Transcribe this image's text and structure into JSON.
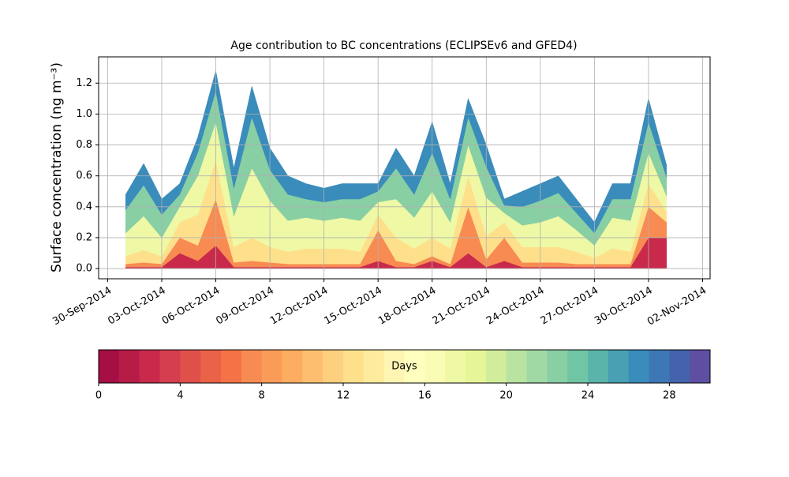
{
  "chart_data": {
    "type": "stacked_area",
    "title": "Age contribution to BC concentrations (ECLIPSEv6 and GFED4)",
    "y_label": "Surface concentration (ng m⁻³)",
    "x": [
      "2014-10-01",
      "2014-10-02",
      "2014-10-03",
      "2014-10-04",
      "2014-10-05",
      "2014-10-06",
      "2014-10-07",
      "2014-10-08",
      "2014-10-09",
      "2014-10-10",
      "2014-10-11",
      "2014-10-12",
      "2014-10-13",
      "2014-10-14",
      "2014-10-15",
      "2014-10-16",
      "2014-10-17",
      "2014-10-18",
      "2014-10-19",
      "2014-10-20",
      "2014-10-21",
      "2014-10-22",
      "2014-10-23",
      "2014-10-24",
      "2014-10-25",
      "2014-10-26",
      "2014-10-27",
      "2014-10-28",
      "2014-10-29",
      "2014-10-30",
      "2014-10-31"
    ],
    "series": [
      {
        "color": "#c9294a",
        "values": [
          0.01,
          0.01,
          0.01,
          0.1,
          0.05,
          0.15,
          0.01,
          0.01,
          0.01,
          0.01,
          0.01,
          0.01,
          0.01,
          0.01,
          0.05,
          0.01,
          0.01,
          0.05,
          0.01,
          0.1,
          0.01,
          0.05,
          0.01,
          0.01,
          0.01,
          0.01,
          0.01,
          0.01,
          0.01,
          0.2,
          0.2
        ]
      },
      {
        "color": "#f88b52",
        "values": [
          0.02,
          0.03,
          0.02,
          0.1,
          0.1,
          0.3,
          0.03,
          0.04,
          0.03,
          0.02,
          0.02,
          0.02,
          0.02,
          0.02,
          0.2,
          0.04,
          0.02,
          0.03,
          0.02,
          0.3,
          0.05,
          0.15,
          0.03,
          0.03,
          0.03,
          0.02,
          0.02,
          0.02,
          0.02,
          0.2,
          0.1
        ]
      },
      {
        "color": "#fee08b",
        "values": [
          0.05,
          0.08,
          0.05,
          0.1,
          0.2,
          0.25,
          0.1,
          0.15,
          0.1,
          0.08,
          0.1,
          0.1,
          0.1,
          0.08,
          0.1,
          0.15,
          0.1,
          0.12,
          0.1,
          0.2,
          0.15,
          0.1,
          0.1,
          0.1,
          0.1,
          0.08,
          0.04,
          0.1,
          0.08,
          0.15,
          0.07
        ]
      },
      {
        "color": "#eef8a5",
        "values": [
          0.15,
          0.22,
          0.12,
          0.1,
          0.25,
          0.25,
          0.2,
          0.45,
          0.3,
          0.2,
          0.2,
          0.18,
          0.2,
          0.2,
          0.08,
          0.25,
          0.2,
          0.3,
          0.17,
          0.2,
          0.25,
          0.06,
          0.14,
          0.16,
          0.2,
          0.14,
          0.08,
          0.2,
          0.2,
          0.2,
          0.1
        ]
      },
      {
        "color": "#88cfa4",
        "values": [
          0.15,
          0.2,
          0.15,
          0.08,
          0.15,
          0.2,
          0.18,
          0.33,
          0.2,
          0.17,
          0.12,
          0.12,
          0.12,
          0.14,
          0.07,
          0.2,
          0.15,
          0.25,
          0.15,
          0.18,
          0.2,
          0.05,
          0.12,
          0.14,
          0.15,
          0.11,
          0.08,
          0.12,
          0.14,
          0.2,
          0.12
        ]
      },
      {
        "color": "#3a8cbb",
        "values": [
          0.1,
          0.14,
          0.1,
          0.07,
          0.1,
          0.13,
          0.13,
          0.2,
          0.14,
          0.12,
          0.1,
          0.09,
          0.1,
          0.1,
          0.05,
          0.13,
          0.12,
          0.2,
          0.1,
          0.12,
          0.14,
          0.04,
          0.1,
          0.11,
          0.11,
          0.09,
          0.07,
          0.1,
          0.1,
          0.15,
          0.08
        ]
      }
    ],
    "xlim": [
      "2014-09-29T12:00Z",
      "2014-11-02T10:00Z"
    ],
    "xticks": [
      {
        "value": "2014-09-30",
        "label": "30-Sep-2014"
      },
      {
        "value": "2014-10-03",
        "label": "03-Oct-2014"
      },
      {
        "value": "2014-10-06",
        "label": "06-Oct-2014"
      },
      {
        "value": "2014-10-09",
        "label": "09-Oct-2014"
      },
      {
        "value": "2014-10-12",
        "label": "12-Oct-2014"
      },
      {
        "value": "2014-10-15",
        "label": "15-Oct-2014"
      },
      {
        "value": "2014-10-18",
        "label": "18-Oct-2014"
      },
      {
        "value": "2014-10-21",
        "label": "21-Oct-2014"
      },
      {
        "value": "2014-10-24",
        "label": "24-Oct-2014"
      },
      {
        "value": "2014-10-27",
        "label": "27-Oct-2014"
      },
      {
        "value": "2014-10-30",
        "label": "30-Oct-2014"
      },
      {
        "value": "2014-11-02",
        "label": "02-Nov-2014"
      }
    ],
    "ylim": [
      -0.066,
      1.37
    ],
    "yticks": [
      {
        "value": 0,
        "label": "0.0"
      },
      {
        "value": 0.2,
        "label": "0.2"
      },
      {
        "value": 0.4,
        "label": "0.4"
      },
      {
        "value": 0.6,
        "label": "0.6"
      },
      {
        "value": 0.8,
        "label": "0.8"
      },
      {
        "value": 1,
        "label": "1.0"
      },
      {
        "value": 1.2,
        "label": "1.2"
      }
    ],
    "grid": true,
    "colorbar": {
      "label": "Days",
      "lim": [
        0,
        30
      ],
      "ticks": [
        0,
        4,
        8,
        12,
        16,
        20,
        24,
        28
      ],
      "colors": [
        "#a50f45",
        "#b71c47",
        "#c9294a",
        "#d53e4f",
        "#e0504b",
        "#ea6247",
        "#f47245",
        "#f88b52",
        "#fa9c58",
        "#fcad60",
        "#fdbf6f",
        "#fdd080",
        "#fee08b",
        "#feeb9e",
        "#fff5b2",
        "#ffffbe",
        "#f8fcb4",
        "#eef8a5",
        "#e6f598",
        "#d1ed9c",
        "#b9e3a0",
        "#a0d9a4",
        "#88cfa4",
        "#70c5a4",
        "#5bb4a9",
        "#48a0b2",
        "#3a8cbb",
        "#3d77b6",
        "#4563ad",
        "#5e4fa2"
      ]
    }
  }
}
